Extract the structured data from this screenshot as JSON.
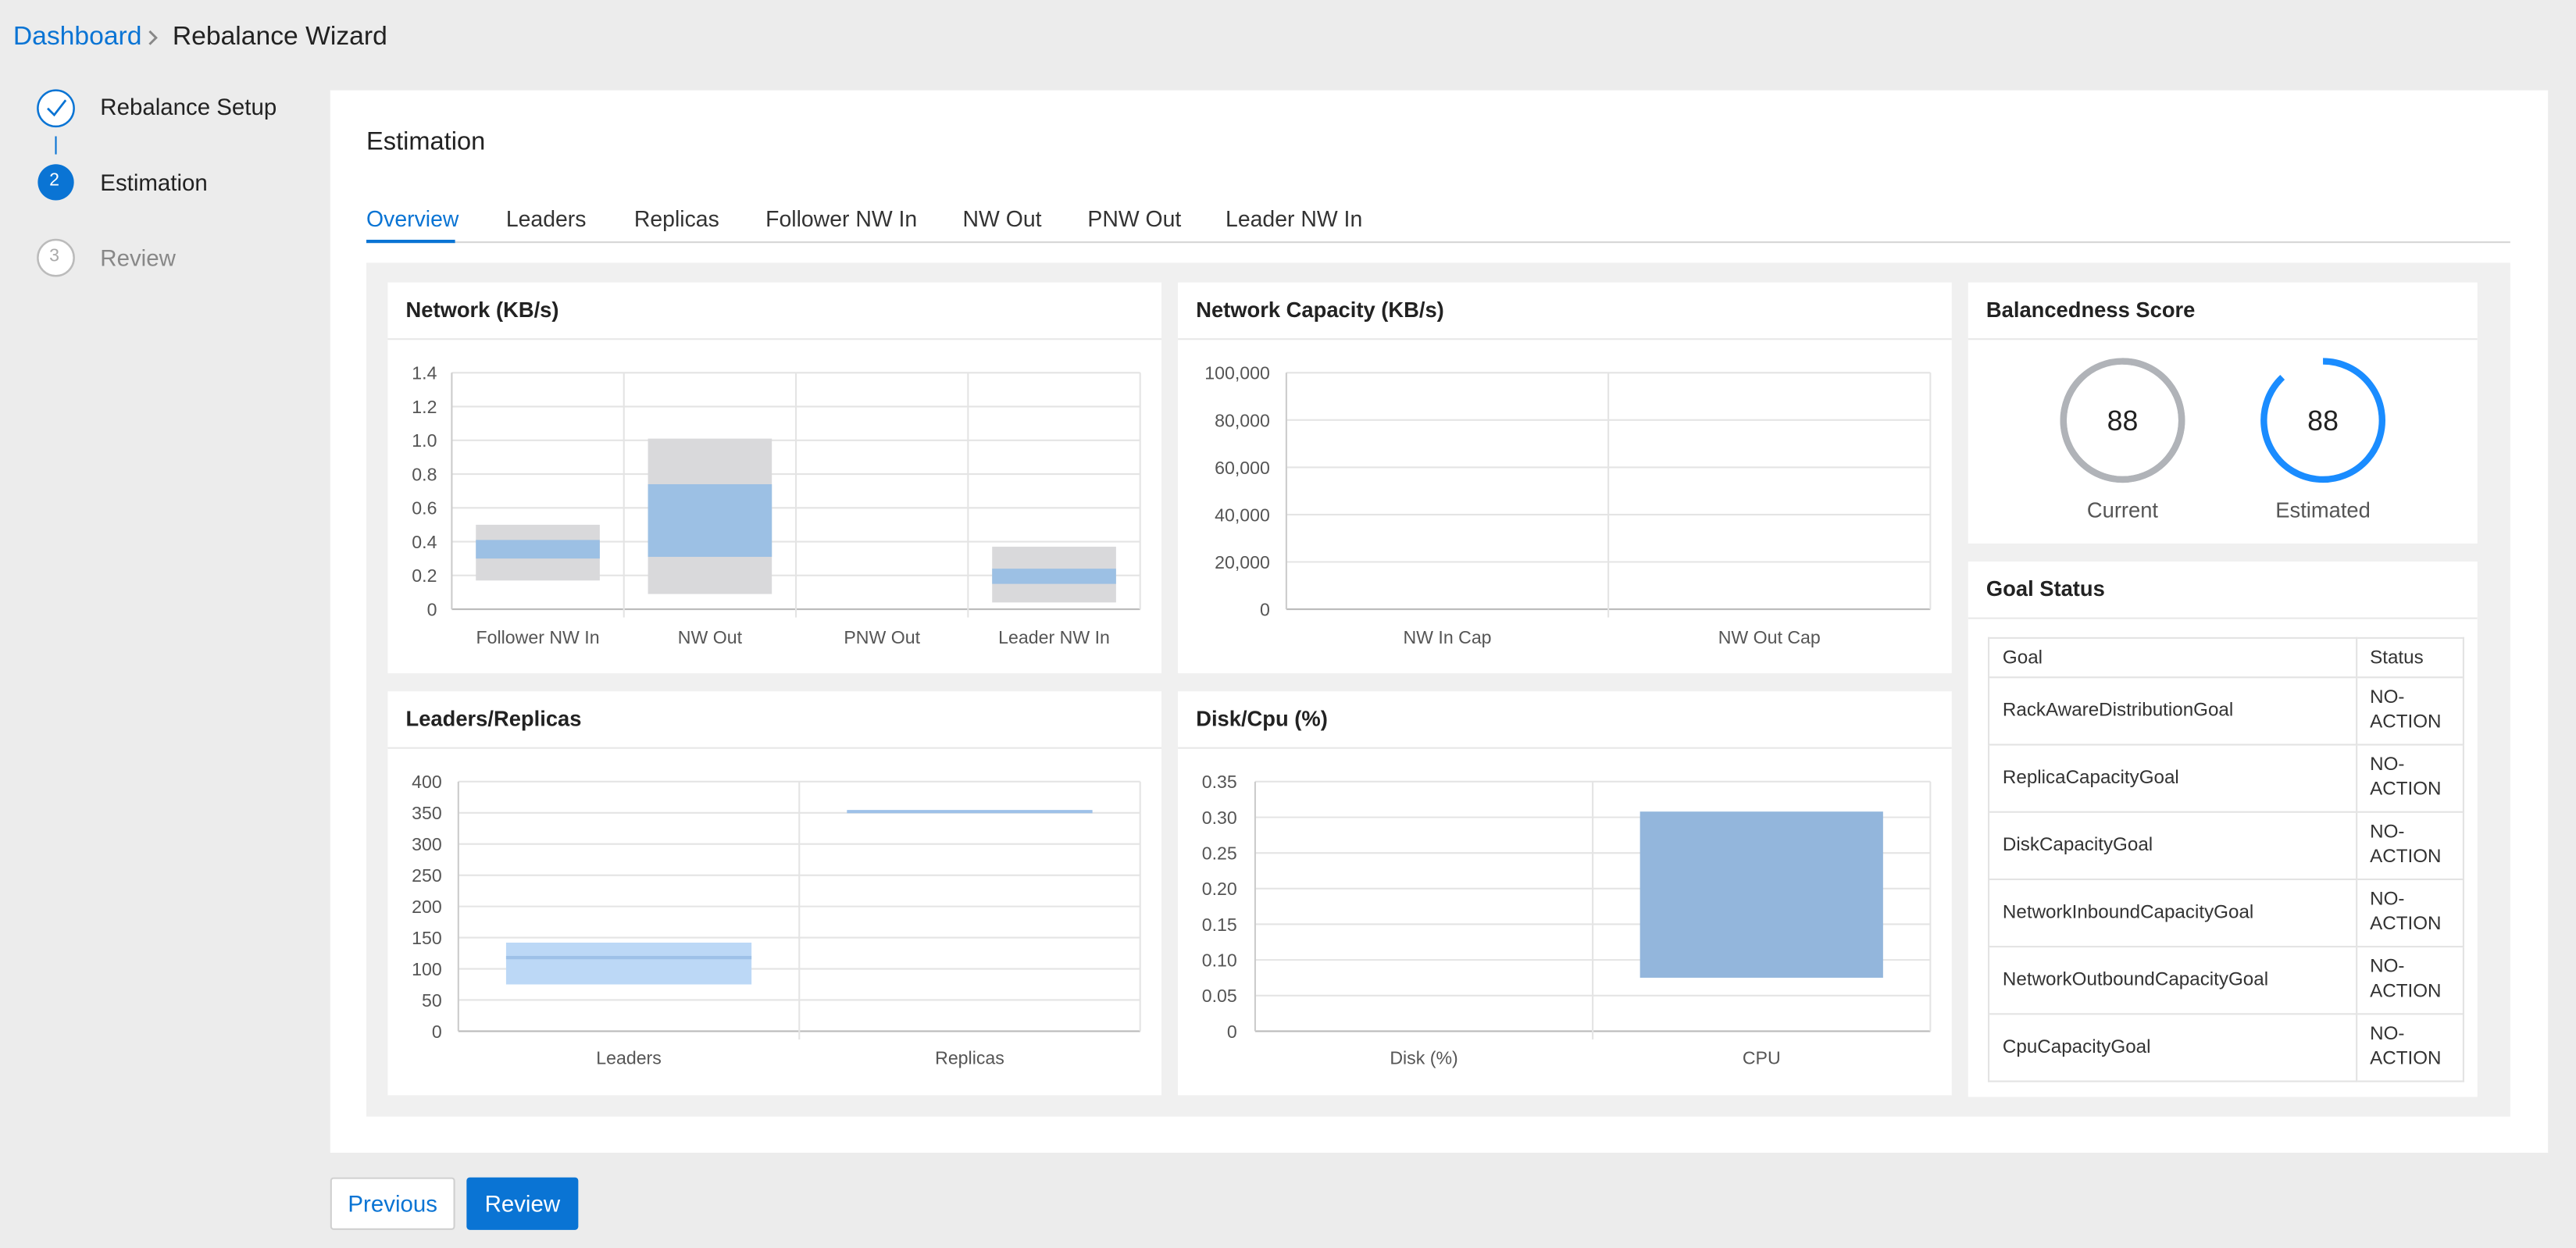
{
  "breadcrumb": {
    "root": "Dashboard",
    "current": "Rebalance Wizard"
  },
  "steps": [
    {
      "label": "Rebalance Setup"
    },
    {
      "number": "2",
      "label": "Estimation"
    },
    {
      "number": "3",
      "label": "Review"
    }
  ],
  "panel": {
    "title": "Estimation"
  },
  "tabs": [
    "Overview",
    "Leaders",
    "Replicas",
    "Follower NW In",
    "NW Out",
    "PNW Out",
    "Leader NW In"
  ],
  "chart_data": [
    {
      "type": "range",
      "title": "Network (KB/s)",
      "categories": [
        "Follower NW In",
        "NW Out",
        "PNW Out",
        "Leader NW In"
      ],
      "low": [
        0.17,
        0.09,
        null,
        0.04
      ],
      "high": [
        0.5,
        1.01,
        null,
        0.37
      ],
      "q1": [
        0.3,
        0.31,
        null,
        0.15
      ],
      "q3": [
        0.41,
        0.74,
        null,
        0.24
      ],
      "ylim": [
        0,
        1.4
      ],
      "yticks": [
        0,
        0.2,
        0.4,
        0.6,
        0.8,
        {
          "value": 1,
          "label": "1.0"
        },
        1.2,
        1.4
      ],
      "grid": true,
      "range_color": "#d9d9db",
      "box_color": "#9cc0e4"
    },
    {
      "type": "range",
      "title": "Network Capacity (KB/s)",
      "categories": [
        "NW In Cap",
        "NW Out Cap"
      ],
      "low": [
        null,
        null
      ],
      "high": [
        null,
        null
      ],
      "ylim": [
        0,
        100000
      ],
      "yticks": [
        0,
        {
          "value": 20000,
          "label": "20,000"
        },
        {
          "value": 40000,
          "label": "40,000"
        },
        {
          "value": 60000,
          "label": "60,000"
        },
        {
          "value": 80000,
          "label": "80,000"
        },
        {
          "value": 100000,
          "label": "100,000"
        }
      ],
      "grid": true,
      "range_color": "#d9d9db"
    },
    {
      "type": "range",
      "title": "Leaders/Replicas",
      "categories": [
        "Leaders",
        "Replicas"
      ],
      "low": [
        75,
        351
      ],
      "high": [
        142,
        353
      ],
      "median": [
        118,
        352
      ],
      "ylim": [
        0,
        400
      ],
      "yticks": [
        0,
        50,
        100,
        150,
        200,
        250,
        300,
        350,
        400
      ],
      "grid": true,
      "range_color": "#bcd8f6",
      "line_color": "#9ec1e8"
    },
    {
      "type": "range",
      "title": "Disk/Cpu (%)",
      "categories": [
        "Disk (%)",
        "CPU"
      ],
      "low": [
        null,
        0.075
      ],
      "high": [
        null,
        0.308
      ],
      "ylim": [
        0,
        0.35
      ],
      "yticks": [
        0,
        0.05,
        {
          "value": 0.1,
          "label": "0.10"
        },
        0.15,
        {
          "value": 0.2,
          "label": "0.20"
        },
        0.25,
        {
          "value": 0.3,
          "label": "0.30"
        },
        0.35
      ],
      "grid": true,
      "range_color": "#93b6dc"
    }
  ],
  "balancedness": {
    "title": "Balancedness Score",
    "max": 100,
    "scores": [
      {
        "label": "Current",
        "value": 88,
        "color": "#b0b3b8"
      },
      {
        "label": "Estimated",
        "value": 88,
        "color": "#1a8cff"
      }
    ]
  },
  "goal_status": {
    "title": "Goal Status",
    "columns": [
      "Goal",
      "Status"
    ],
    "rows": [
      [
        "RackAwareDistributionGoal",
        "NO-ACTION"
      ],
      [
        "ReplicaCapacityGoal",
        "NO-ACTION"
      ],
      [
        "DiskCapacityGoal",
        "NO-ACTION"
      ],
      [
        "NetworkInboundCapacityGoal",
        "NO-ACTION"
      ],
      [
        "NetworkOutboundCapacityGoal",
        "NO-ACTION"
      ],
      [
        "CpuCapacityGoal",
        "NO-ACTION"
      ]
    ]
  },
  "buttons": {
    "previous": "Previous",
    "next": "Review"
  }
}
